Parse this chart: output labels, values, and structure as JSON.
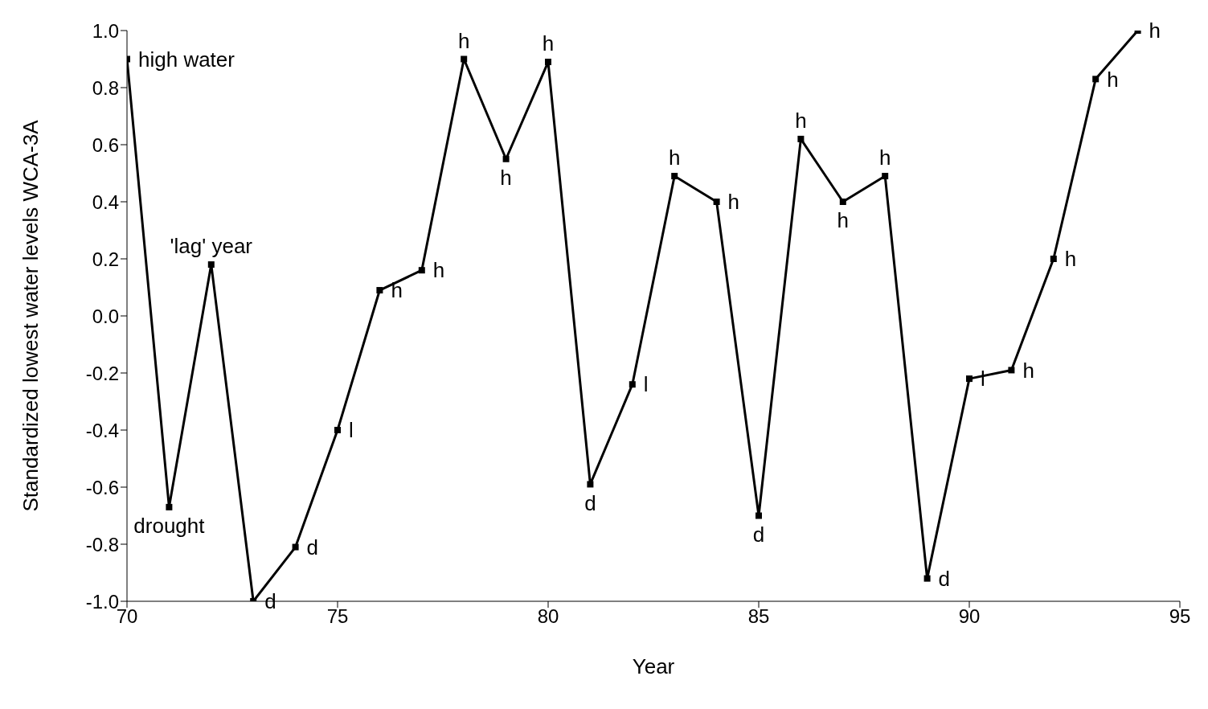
{
  "chart_data": {
    "type": "line",
    "xlabel": "Year",
    "ylabel": "Standardized lowest water levels WCA-3A",
    "x": [
      70,
      71,
      72,
      73,
      74,
      75,
      76,
      77,
      78,
      79,
      80,
      81,
      82,
      83,
      84,
      85,
      86,
      87,
      88,
      89,
      90,
      91,
      92,
      93,
      94
    ],
    "series": [
      {
        "color": "#000000",
        "values": [
          0.9,
          -0.67,
          0.18,
          -1.0,
          -0.81,
          -0.4,
          0.09,
          0.16,
          0.9,
          0.55,
          0.89,
          -0.59,
          -0.24,
          0.49,
          0.4,
          -0.7,
          0.62,
          0.4,
          0.49,
          -0.92,
          -0.22,
          -0.19,
          0.2,
          0.83,
          1.0
        ]
      }
    ],
    "xlim": [
      70,
      95
    ],
    "xticks": [
      70,
      75,
      80,
      85,
      90,
      95
    ],
    "ylim": [
      -1.0,
      1.0
    ],
    "yticks": [
      {
        "value": -1,
        "label": "-1.0"
      },
      {
        "value": -0.8,
        "label": "-0.8"
      },
      {
        "value": -0.6,
        "label": "-0.6"
      },
      {
        "value": -0.4,
        "label": "-0.4"
      },
      {
        "value": -0.2,
        "label": "-0.2"
      },
      {
        "value": 0,
        "label": "0.0"
      },
      {
        "value": 0.2,
        "label": "0.2"
      },
      {
        "value": 0.4,
        "label": "0.4"
      },
      {
        "value": 0.6,
        "label": "0.6"
      },
      {
        "value": 0.8,
        "label": "0.8"
      },
      {
        "value": 1,
        "label": "1.0"
      }
    ],
    "grid": false,
    "legend": false,
    "marker": "square",
    "line_style": "solid",
    "annotations": [
      {
        "text": "high water",
        "x": 70,
        "y": 0.9
      },
      {
        "text": "drought",
        "x": 71,
        "y": -0.67
      },
      {
        "text": "'lag' year",
        "x": 72,
        "y": 0.18
      },
      {
        "text": "d",
        "x": 73,
        "y": -1.0
      },
      {
        "text": "d",
        "x": 74,
        "y": -0.81
      },
      {
        "text": "l",
        "x": 75,
        "y": -0.4
      },
      {
        "text": "h",
        "x": 76,
        "y": 0.09
      },
      {
        "text": "h",
        "x": 77,
        "y": 0.16
      },
      {
        "text": "h",
        "x": 78,
        "y": 0.9
      },
      {
        "text": "h",
        "x": 79,
        "y": 0.55
      },
      {
        "text": "h",
        "x": 80,
        "y": 0.89
      },
      {
        "text": "d",
        "x": 81,
        "y": -0.59
      },
      {
        "text": "l",
        "x": 82,
        "y": -0.24
      },
      {
        "text": "h",
        "x": 83,
        "y": 0.49
      },
      {
        "text": "h",
        "x": 84,
        "y": 0.4
      },
      {
        "text": "d",
        "x": 85,
        "y": -0.7
      },
      {
        "text": "h",
        "x": 86,
        "y": 0.62
      },
      {
        "text": "h",
        "x": 87,
        "y": 0.4
      },
      {
        "text": "h",
        "x": 88,
        "y": 0.49
      },
      {
        "text": "d",
        "x": 89,
        "y": -0.92
      },
      {
        "text": "l",
        "x": 90,
        "y": -0.22
      },
      {
        "text": "h",
        "x": 91,
        "y": -0.19
      },
      {
        "text": "h",
        "x": 92,
        "y": 0.2
      },
      {
        "text": "h",
        "x": 93,
        "y": 0.83
      },
      {
        "text": "h",
        "x": 94,
        "y": 1.0
      }
    ]
  }
}
